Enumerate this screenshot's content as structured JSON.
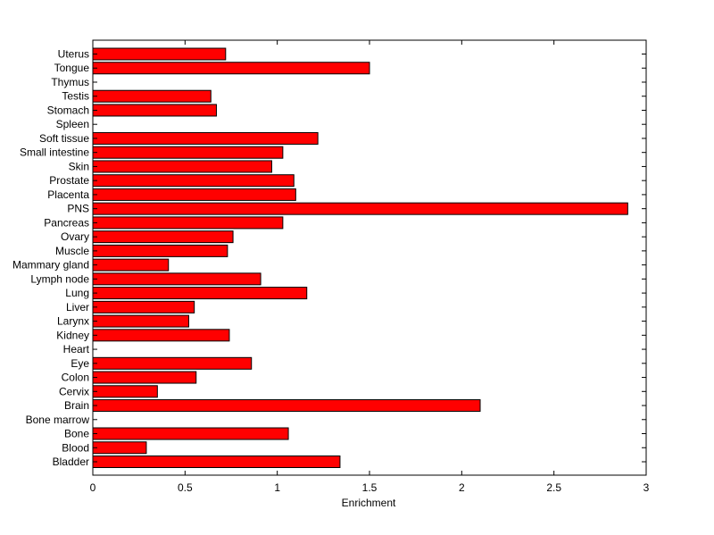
{
  "chart_data": {
    "type": "bar",
    "orientation": "horizontal",
    "categories": [
      "Uterus",
      "Tongue",
      "Thymus",
      "Testis",
      "Stomach",
      "Spleen",
      "Soft tissue",
      "Small intestine",
      "Skin",
      "Prostate",
      "Placenta",
      "PNS",
      "Pancreas",
      "Ovary",
      "Muscle",
      "Mammary gland",
      "Lymph node",
      "Lung",
      "Liver",
      "Larynx",
      "Kidney",
      "Heart",
      "Eye",
      "Colon",
      "Cervix",
      "Brain",
      "Bone marrow",
      "Bone",
      "Blood",
      "Bladder"
    ],
    "values": [
      0.72,
      1.5,
      0,
      0.64,
      0.67,
      0,
      1.22,
      1.03,
      0.97,
      1.09,
      1.1,
      2.9,
      1.03,
      0.76,
      0.73,
      0.41,
      0.91,
      1.16,
      0.55,
      0.52,
      0.74,
      0,
      0.86,
      0.56,
      0.35,
      2.1,
      0,
      1.06,
      0.29,
      1.34
    ],
    "xlabel": "Enrichment",
    "ylabel": "",
    "title": "",
    "xlim": [
      0,
      3
    ],
    "xticks": [
      0,
      0.5,
      1,
      1.5,
      2,
      2.5,
      3
    ],
    "xtick_labels": [
      "0",
      "0.5",
      "1",
      "1.5",
      "2",
      "2.5",
      "3"
    ],
    "grid": false,
    "bar_color": "#ff0000",
    "edge_color": "#000000"
  }
}
